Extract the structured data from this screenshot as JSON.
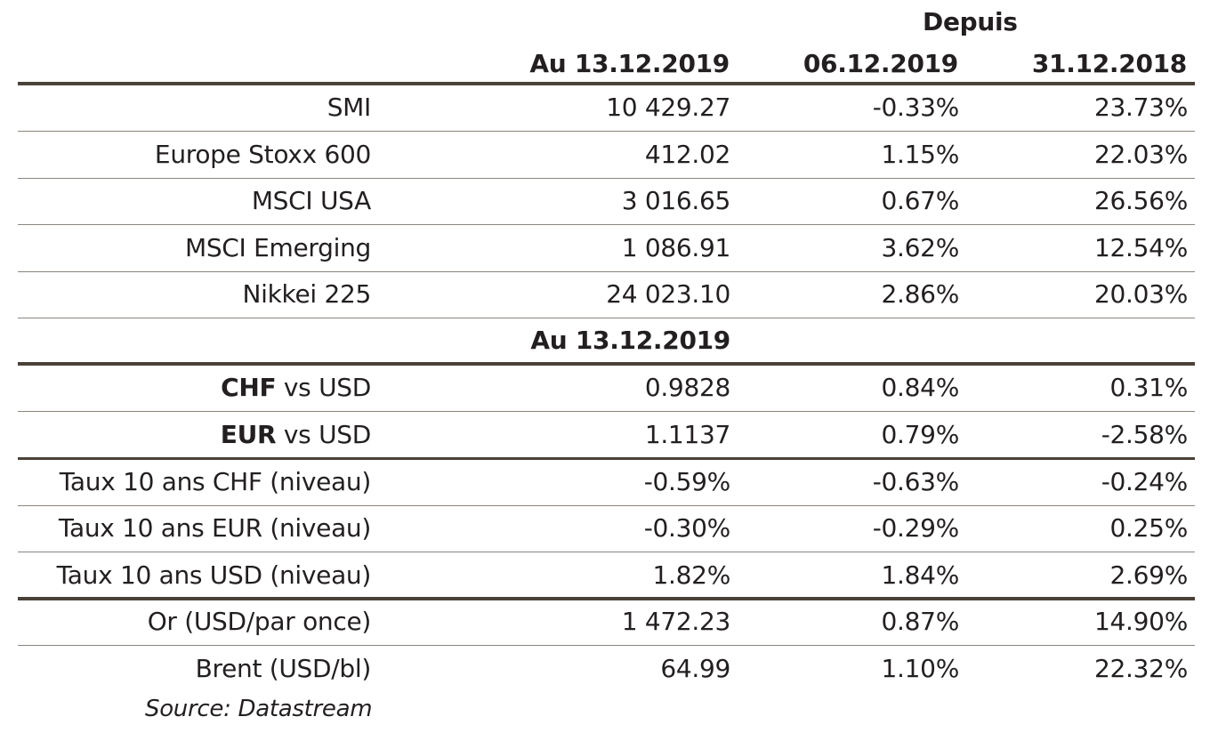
{
  "header": {
    "since_label": "Depuis",
    "col_current": "Au 13.12.2019",
    "col_week": "06.12.2019",
    "col_ytd": "31.12.2018"
  },
  "equities": [
    {
      "label": "SMI",
      "value": "10 429.27",
      "week": "-0.33%",
      "ytd": "23.73%"
    },
    {
      "label": "Europe Stoxx 600",
      "value": "412.02",
      "week": "1.15%",
      "ytd": "22.03%"
    },
    {
      "label": "MSCI USA",
      "value": "3 016.65",
      "week": "0.67%",
      "ytd": "26.56%"
    },
    {
      "label": "MSCI Emerging",
      "value": "1 086.91",
      "week": "3.62%",
      "ytd": "12.54%"
    },
    {
      "label": "Nikkei 225",
      "value": "24 023.10",
      "week": "2.86%",
      "ytd": "20.03%"
    }
  ],
  "section2": {
    "heading": "Au 13.12.2019"
  },
  "fx": [
    {
      "label_bold": "CHF",
      "label_rest": " vs USD",
      "value": "0.9828",
      "week": "0.84%",
      "ytd": "0.31%"
    },
    {
      "label_bold": "EUR",
      "label_rest": " vs USD",
      "value": "1.1137",
      "week": "0.79%",
      "ytd": "-2.58%"
    }
  ],
  "rates": [
    {
      "label": "Taux 10 ans CHF (niveau)",
      "value": "-0.59%",
      "week": "-0.63%",
      "ytd": "-0.24%"
    },
    {
      "label": "Taux 10 ans EUR (niveau)",
      "value": "-0.30%",
      "week": "-0.29%",
      "ytd": "0.25%"
    },
    {
      "label": "Taux 10 ans USD (niveau)",
      "value": "1.82%",
      "week": "1.84%",
      "ytd": "2.69%"
    }
  ],
  "commodities": [
    {
      "label": "Or (USD/par once)",
      "value": "1 472.23",
      "week": "0.87%",
      "ytd": "14.90%"
    },
    {
      "label": "Brent (USD/bl)",
      "value": "64.99",
      "week": "1.10%",
      "ytd": "22.32%"
    }
  ],
  "footer": {
    "source": "Source: Datastream"
  },
  "colors": {
    "text": "#231f20",
    "rule_thick": "#4a4239",
    "rule_thin": "#8c857e"
  }
}
